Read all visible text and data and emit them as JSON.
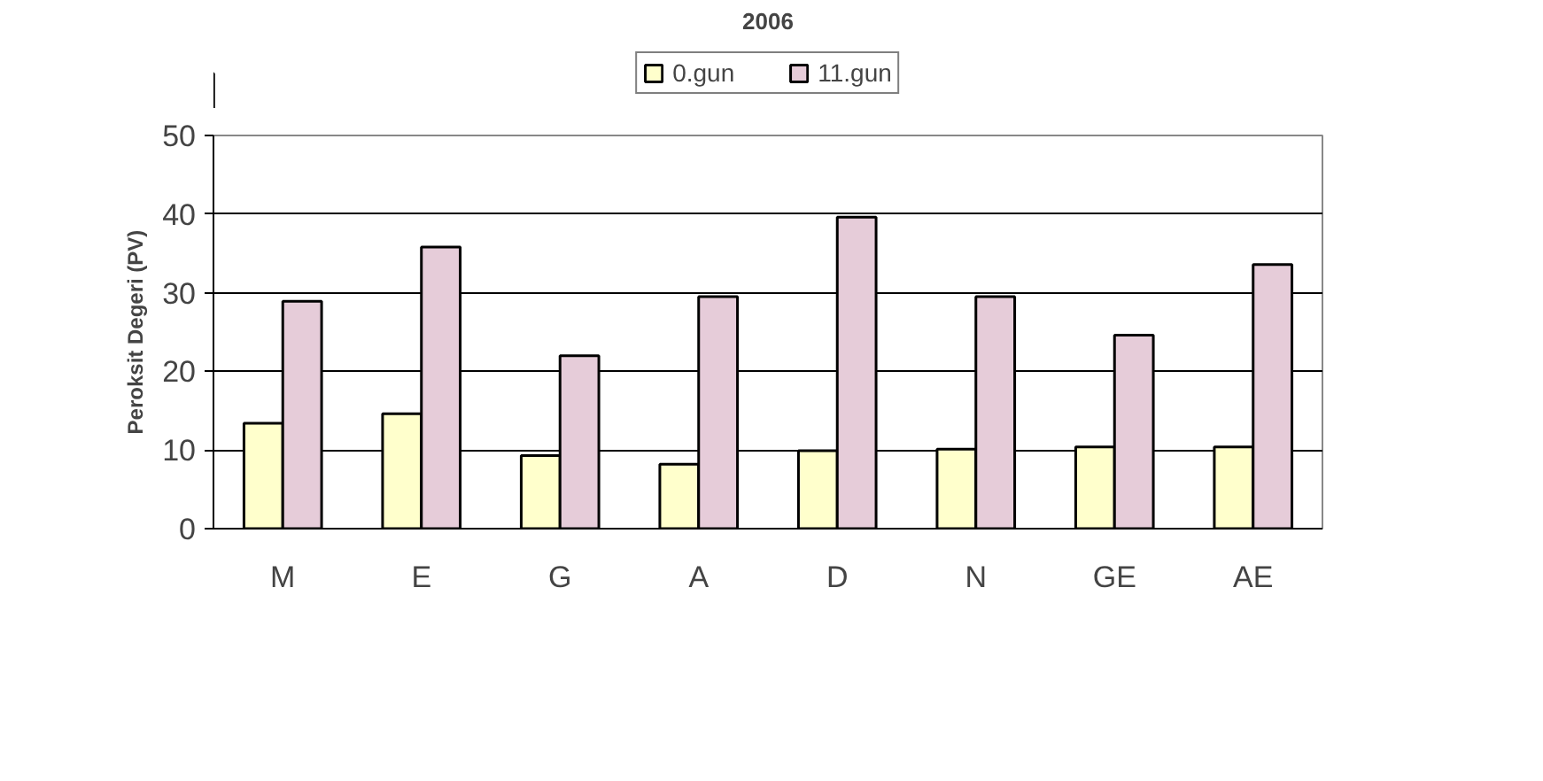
{
  "chart_data": {
    "type": "bar",
    "title": "2006",
    "ylabel": "Peroksit Degeri (PV)",
    "categories": [
      "M",
      "E",
      "G",
      "A",
      "D",
      "N",
      "GE",
      "AE"
    ],
    "series": [
      {
        "name": "0.gun",
        "color": "#ffffcc",
        "values": [
          13.4,
          14.6,
          9.3,
          8.2,
          9.9,
          10.1,
          10.4,
          10.4
        ]
      },
      {
        "name": "11.gun",
        "color": "#e6ccd9",
        "values": [
          28.9,
          35.8,
          22.0,
          29.5,
          39.6,
          29.5,
          24.6,
          33.6
        ]
      }
    ],
    "ylim": [
      0,
      50
    ],
    "yticks": [
      0,
      10,
      20,
      30,
      40,
      50
    ],
    "grid": "y",
    "legend": "top"
  }
}
